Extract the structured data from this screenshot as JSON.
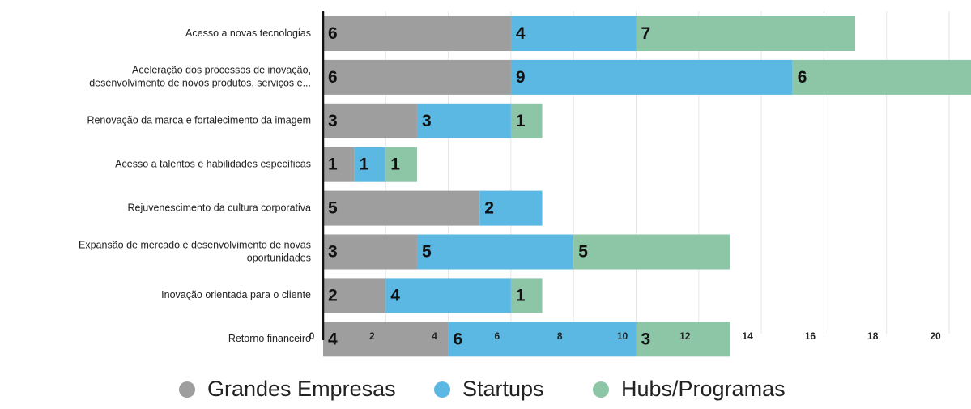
{
  "chart_data": {
    "type": "bar",
    "orientation": "horizontal",
    "stacked": true,
    "categories": [
      [
        "Acesso a novas tecnologias"
      ],
      [
        "Aceleração dos processos de inovação,",
        "desenvolvimento de novos produtos, serviços e..."
      ],
      [
        "Renovação da marca e fortalecimento da imagem"
      ],
      [
        "Acesso a talentos e habilidades específicas"
      ],
      [
        "Rejuvenescimento da cultura corporativa"
      ],
      [
        "Expansão de mercado e desenvolvimento de novas",
        "oportunidades"
      ],
      [
        "Inovação orientada para o cliente"
      ],
      [
        "Retorno financeiro"
      ]
    ],
    "series": [
      {
        "name": "Grandes Empresas",
        "color": "#9e9e9e",
        "values": [
          6,
          6,
          3,
          1,
          5,
          3,
          2,
          4
        ]
      },
      {
        "name": "Startups",
        "color": "#5bb8e3",
        "values": [
          4,
          9,
          3,
          1,
          2,
          5,
          4,
          6
        ]
      },
      {
        "name": "Hubs/Programas",
        "color": "#8dc5a7",
        "values": [
          7,
          6,
          1,
          1,
          0,
          5,
          1,
          3
        ]
      }
    ],
    "xticks": [
      0,
      2,
      4,
      6,
      8,
      10,
      12,
      14,
      16,
      18,
      20
    ],
    "xlim": [
      0,
      21
    ],
    "grid": true,
    "legend_position": "bottom",
    "data_labels": true,
    "title": "",
    "xlabel": "",
    "ylabel": ""
  }
}
